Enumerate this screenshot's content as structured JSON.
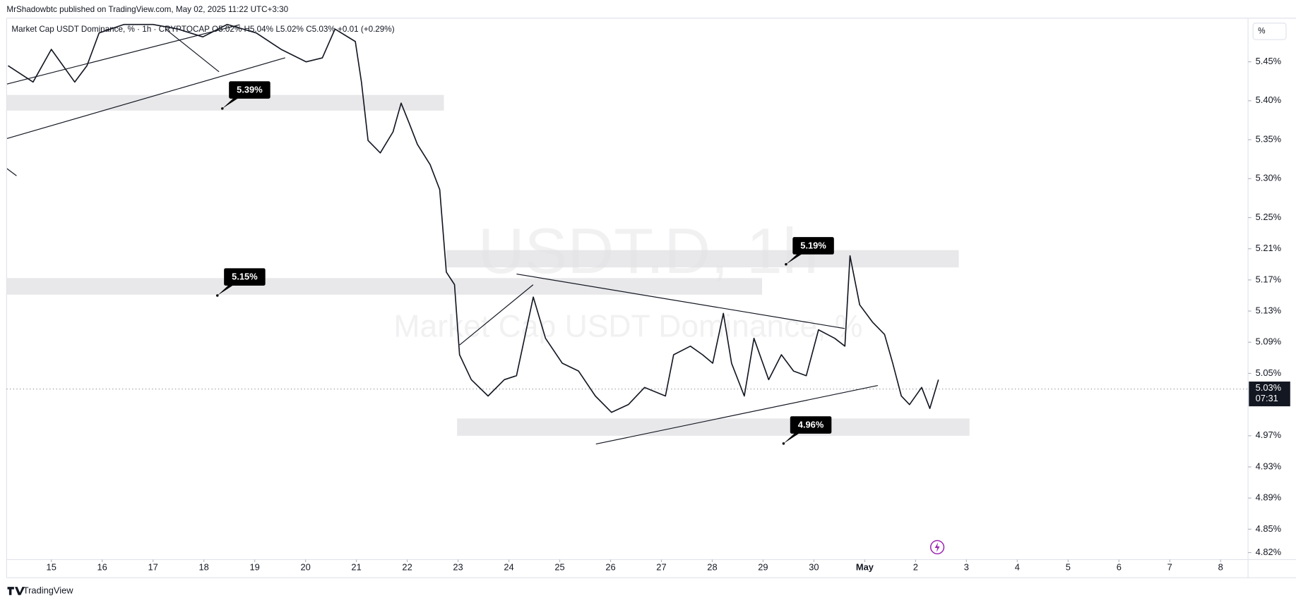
{
  "header": {
    "publisher": "MrShadowbtc published on TradingView.com, May 02, 2025 11:22 UTC+3:30",
    "legend": "Market Cap USDT Dominance, % · 1h · CRYPTOCAP  O5.02% H5.04% L5.02% C5.03% +0.01 (+0.29%)"
  },
  "watermark": {
    "symbol": "USDT.D, 1h",
    "description": "Market Cap USDT Dominance, %"
  },
  "scale_unit": "%",
  "footer": "TradingView",
  "chart_data": {
    "type": "line",
    "color": "#131722",
    "x": [
      -0.85,
      -0.36,
      0,
      0.46,
      0.7,
      0.94,
      1.43,
      2.0,
      2.49,
      2.98,
      3.46,
      4.03,
      4.52,
      5.01,
      5.33,
      5.58,
      5.98,
      6.1,
      6.23,
      6.47,
      6.72,
      6.88,
      7.04,
      7.2,
      7.45,
      7.64,
      7.77,
      7.93,
      8.03,
      8.26,
      8.59,
      8.91,
      9.15,
      9.48,
      9.72,
      10.05,
      10.37,
      10.7,
      11.02,
      11.35,
      11.67,
      12.08,
      12.24,
      12.57,
      12.81,
      13.01,
      13.22,
      13.38,
      13.63,
      13.82,
      14.11,
      14.36,
      14.6,
      14.85,
      15.09,
      15.41,
      15.61,
      15.71,
      15.9,
      16.15,
      16.39,
      16.55,
      16.72,
      16.88,
      17.12,
      17.28,
      17.45
    ],
    "values": [
      5.445,
      5.424,
      5.466,
      5.424,
      5.445,
      5.487,
      5.498,
      5.498,
      5.492,
      5.482,
      5.498,
      5.487,
      5.466,
      5.45,
      5.455,
      5.492,
      5.476,
      5.424,
      5.349,
      5.333,
      5.36,
      5.397,
      5.371,
      5.344,
      5.318,
      5.286,
      5.18,
      5.164,
      5.074,
      5.042,
      5.021,
      5.042,
      5.047,
      5.148,
      5.095,
      5.063,
      5.053,
      5.021,
      5.0,
      5.01,
      5.032,
      5.021,
      5.074,
      5.085,
      5.074,
      5.063,
      5.127,
      5.063,
      5.021,
      5.095,
      5.042,
      5.074,
      5.053,
      5.047,
      5.106,
      5.095,
      5.085,
      5.201,
      5.138,
      5.116,
      5.1,
      5.063,
      5.021,
      5.01,
      5.032,
      5.005,
      5.042
    ],
    "xlim": [
      -0.88,
      23.54
    ],
    "ylim": [
      4.811,
      5.506
    ],
    "xticks": [
      {
        "value": 0,
        "label": "15"
      },
      {
        "value": 1,
        "label": "16"
      },
      {
        "value": 2,
        "label": "17"
      },
      {
        "value": 3,
        "label": "18"
      },
      {
        "value": 4,
        "label": "19"
      },
      {
        "value": 5,
        "label": "20"
      },
      {
        "value": 6,
        "label": "21"
      },
      {
        "value": 7,
        "label": "22"
      },
      {
        "value": 8,
        "label": "23"
      },
      {
        "value": 9,
        "label": "24"
      },
      {
        "value": 10,
        "label": "25"
      },
      {
        "value": 11,
        "label": "26"
      },
      {
        "value": 12,
        "label": "27"
      },
      {
        "value": 13,
        "label": "28"
      },
      {
        "value": 14,
        "label": "29"
      },
      {
        "value": 15,
        "label": "30"
      },
      {
        "value": 16,
        "label": "May"
      },
      {
        "value": 17,
        "label": "2"
      },
      {
        "value": 18,
        "label": "3"
      },
      {
        "value": 19,
        "label": "4"
      },
      {
        "value": 20,
        "label": "5"
      },
      {
        "value": 21,
        "label": "6"
      },
      {
        "value": 22,
        "label": "7"
      },
      {
        "value": 23,
        "label": "8"
      }
    ],
    "yticks": [
      {
        "value": 5.45,
        "label": "5.45%"
      },
      {
        "value": 5.4,
        "label": "5.40%"
      },
      {
        "value": 5.35,
        "label": "5.35%"
      },
      {
        "value": 5.3,
        "label": "5.30%"
      },
      {
        "value": 5.25,
        "label": "5.25%"
      },
      {
        "value": 5.21,
        "label": "5.21%"
      },
      {
        "value": 5.17,
        "label": "5.17%"
      },
      {
        "value": 5.13,
        "label": "5.13%"
      },
      {
        "value": 5.09,
        "label": "5.09%"
      },
      {
        "value": 5.05,
        "label": "5.05%"
      },
      {
        "value": 4.97,
        "label": "4.97%"
      },
      {
        "value": 4.93,
        "label": "4.93%"
      },
      {
        "value": 4.89,
        "label": "4.89%"
      },
      {
        "value": 4.85,
        "label": "4.85%"
      },
      {
        "value": 4.82,
        "label": "4.82%"
      }
    ],
    "annotations": [
      {
        "value": 5.39,
        "label": "5.39%"
      },
      {
        "value": 5.15,
        "label": "5.15%"
      },
      {
        "value": 5.19,
        "label": "5.19%"
      },
      {
        "value": 4.96,
        "label": "4.96%"
      }
    ],
    "last_price": {
      "value": 5.03,
      "label": "5.03%",
      "countdown": "07:31"
    }
  }
}
